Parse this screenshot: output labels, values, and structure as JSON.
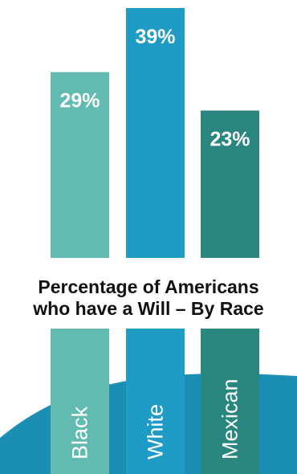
{
  "chart_data": {
    "type": "bar",
    "title": "Percentage of Americans who have a Will – By Race",
    "title_lines": [
      "Percentage of Americans",
      "who have a Will – By Race"
    ],
    "categories": [
      "Black",
      "White",
      "Mexican"
    ],
    "values": [
      29,
      39,
      23
    ],
    "value_labels": [
      "29%",
      "39%",
      "23%"
    ],
    "unit": "%",
    "xlabel": "",
    "ylabel": "",
    "ylim": [
      0,
      39
    ],
    "grid": false,
    "legend": "none"
  },
  "colors": {
    "bars": [
      "#62bbb0",
      "#1e9cc6",
      "#2a8780"
    ],
    "wave": "#1a8fb3",
    "label_text": "#ffffff",
    "title_text": "#111111",
    "background": "#ffffff"
  }
}
